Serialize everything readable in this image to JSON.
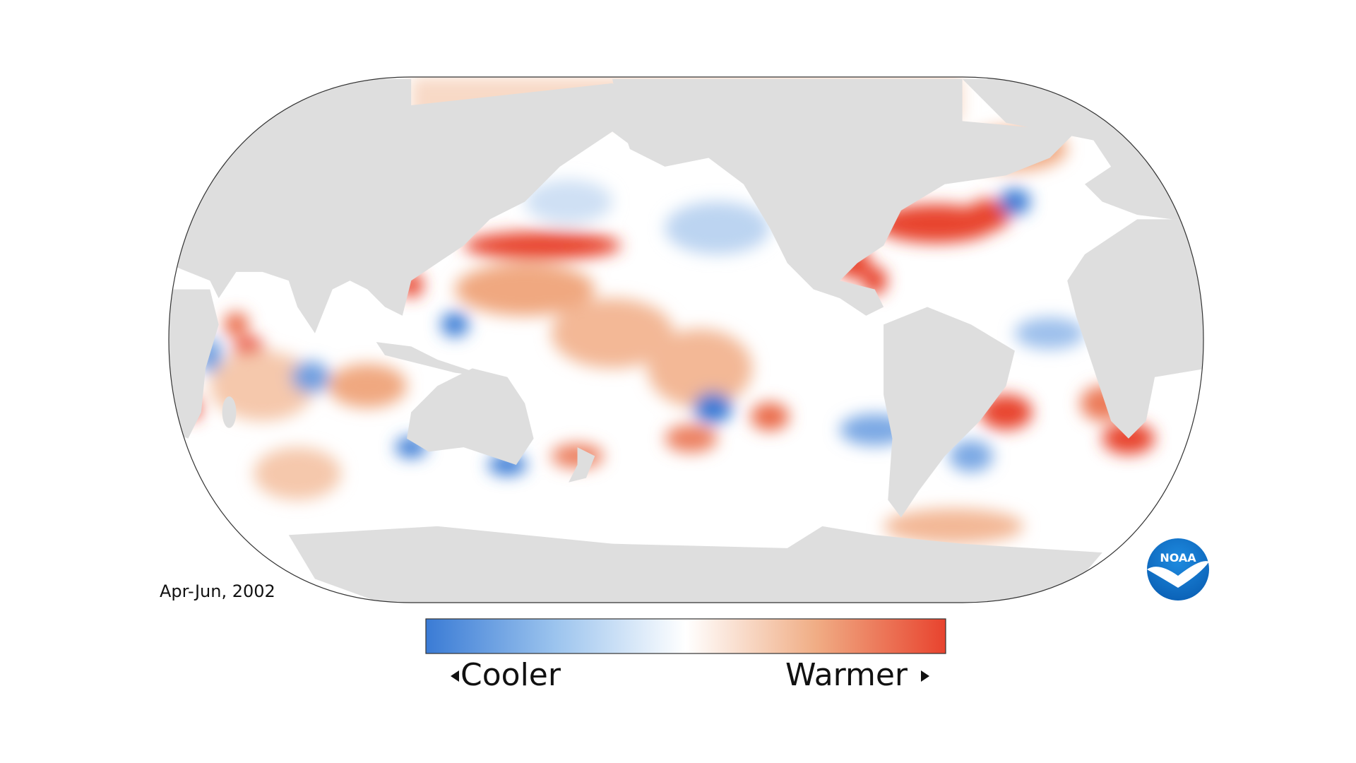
{
  "map": {
    "date_label": "Apr-Jun, 2002"
  },
  "legend": {
    "low_label": "Cooler",
    "high_label": "Warmer"
  },
  "logo": {
    "text": "NOAA"
  }
}
